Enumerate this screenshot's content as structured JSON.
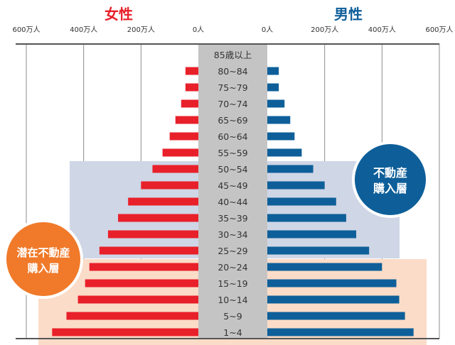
{
  "chart_data": {
    "type": "bar",
    "subtype": "population-pyramid",
    "female_title": "女性",
    "male_title": "男性",
    "female_axis_ticks": [
      "600万人",
      "400万人",
      "200万人",
      "0人"
    ],
    "male_axis_ticks": [
      "0人",
      "200万人",
      "400万人",
      "600万人"
    ],
    "tick_values": [
      600,
      400,
      200,
      0
    ],
    "xlim": [
      0,
      600
    ],
    "unit": "万人",
    "categories": [
      "85歳以上",
      "80~84",
      "75~79",
      "70~74",
      "65~69",
      "60~64",
      "55~59",
      "50~54",
      "45~49",
      "40~44",
      "35~39",
      "30~34",
      "25~29",
      "20~24",
      "15~19",
      "10~14",
      "5~9",
      "1~4"
    ],
    "series": [
      {
        "name": "女性",
        "color": "#e8202a",
        "values": [
          0,
          45,
          45,
          60,
          80,
          100,
          125,
          160,
          200,
          245,
          280,
          315,
          345,
          380,
          395,
          420,
          460,
          510
        ]
      },
      {
        "name": "男性",
        "color": "#0e5f99",
        "values": [
          0,
          40,
          40,
          60,
          80,
          95,
          120,
          160,
          200,
          240,
          275,
          310,
          355,
          400,
          450,
          460,
          480,
          510
        ]
      }
    ],
    "annotations": [
      {
        "text_line1": "不動産",
        "text_line2": "購入層",
        "side": "right",
        "age_from": "50~54",
        "age_to": "25~29",
        "band_color": "#cfd6e6",
        "badge_color": "#0e5f99"
      },
      {
        "text_line1": "潜在不動産",
        "text_line2": "購入層",
        "side": "left",
        "age_from": "20~24",
        "age_to": "1~4",
        "band_color": "#fbdcc8",
        "badge_color": "#f07a2a"
      }
    ]
  }
}
